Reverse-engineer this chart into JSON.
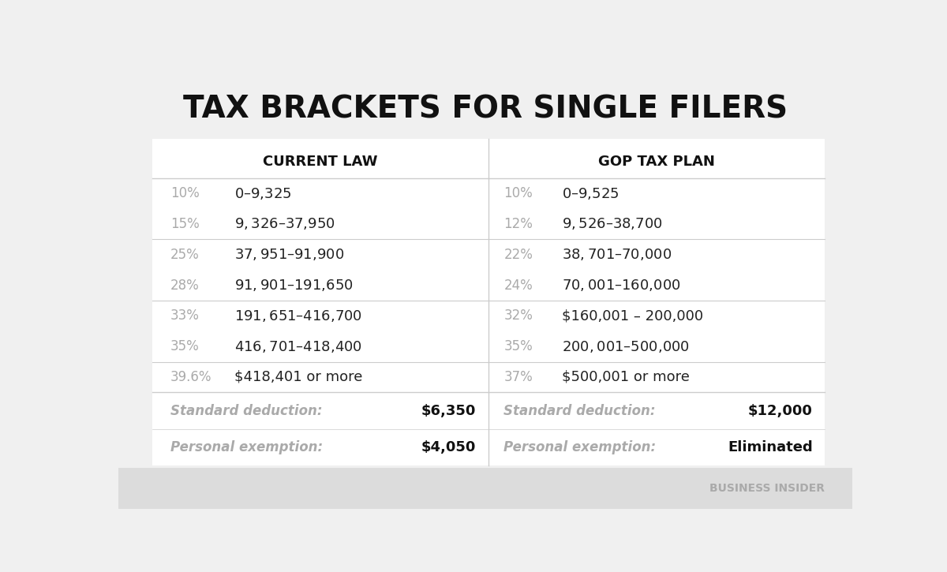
{
  "title": "TAX BRACKETS FOR SINGLE FILERS",
  "background_color": "#f0f0f0",
  "col_header_left": "CURRENT LAW",
  "col_header_right": "GOP TAX PLAN",
  "current_law": [
    {
      "rate": "10%",
      "range": "$0 – $9,325"
    },
    {
      "rate": "15%",
      "range": "$9,326 – $37,950"
    },
    {
      "rate": "25%",
      "range": "$37,951 – $91,900"
    },
    {
      "rate": "28%",
      "range": "$91,901 – $191,650"
    },
    {
      "rate": "33%",
      "range": "$191,651 – $416,700"
    },
    {
      "rate": "35%",
      "range": "$416,701 – $418,400"
    },
    {
      "rate": "39.6%",
      "range": "$418,401 or more"
    }
  ],
  "gop_plan": [
    {
      "rate": "10%",
      "range": "$0 – $9,525"
    },
    {
      "rate": "12%",
      "range": "$9,526 – $38,700"
    },
    {
      "rate": "22%",
      "range": "$38,701 – $70,000"
    },
    {
      "rate": "24%",
      "range": "$70,001 – $160,000"
    },
    {
      "rate": "32%",
      "range": "$160,001 – 200,000"
    },
    {
      "rate": "35%",
      "range": "$200,001 – $500,000"
    },
    {
      "rate": "37%",
      "range": "$500,001 or more"
    }
  ],
  "current_std_deduction": "$6,350",
  "current_personal_exemption": "$4,050",
  "gop_std_deduction": "$12,000",
  "gop_personal_exemption": "Eliminated",
  "divider_after": [
    1,
    3,
    5
  ],
  "rate_color": "#aaaaaa",
  "range_color": "#222222",
  "header_color": "#111111",
  "label_color": "#aaaaaa",
  "value_color": "#111111",
  "divider_color": "#cccccc",
  "footer_text": "BUSINESS INSIDER",
  "footer_color": "#aaaaaa",
  "footer_bg": "#dcdcdc"
}
